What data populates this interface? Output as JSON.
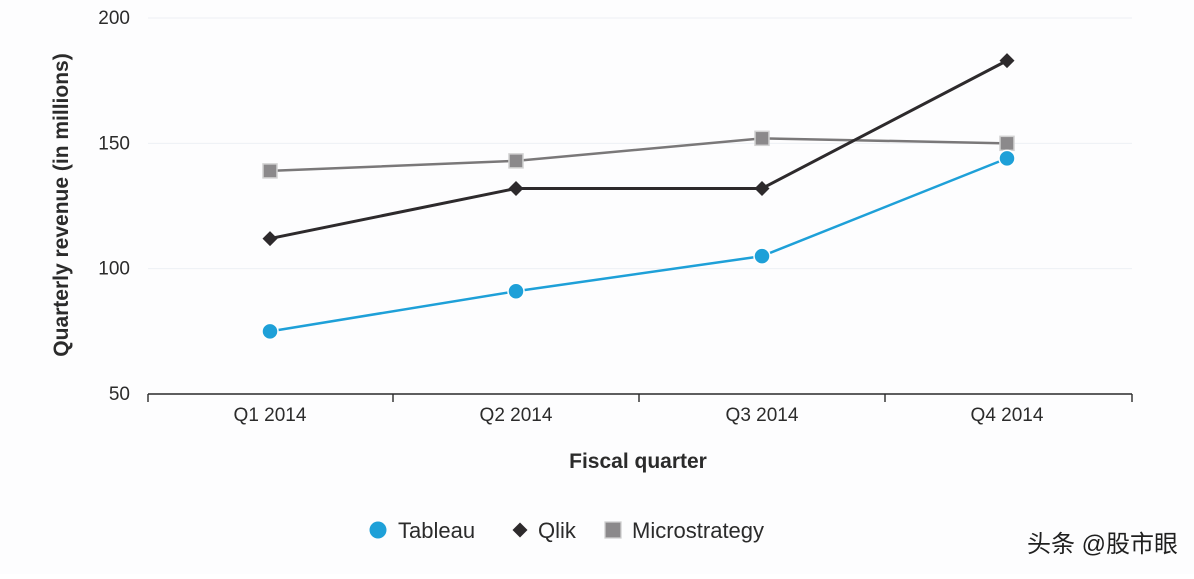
{
  "chart_data": {
    "type": "line",
    "title": "",
    "xlabel": "Fiscal quarter",
    "ylabel": "Quarterly revenue (in millions)",
    "categories": [
      "Q1 2014",
      "Q2 2014",
      "Q3 2014",
      "Q4 2014"
    ],
    "ylim": [
      50,
      200
    ],
    "yticks": [
      50,
      100,
      150,
      200
    ],
    "grid": "horizontal",
    "legend": "bottom-center",
    "series": [
      {
        "name": "Tableau",
        "values": [
          75,
          91,
          105,
          144
        ],
        "color": "#1ea0d8",
        "marker": "circle"
      },
      {
        "name": "Qlik",
        "values": [
          112,
          132,
          132,
          183
        ],
        "color": "#2d2a2c",
        "marker": "diamond"
      },
      {
        "name": "Microstrategy",
        "values": [
          139,
          143,
          152,
          150
        ],
        "color": "#7a7879",
        "marker": "square"
      }
    ]
  },
  "watermark": "头条 @股市眼"
}
